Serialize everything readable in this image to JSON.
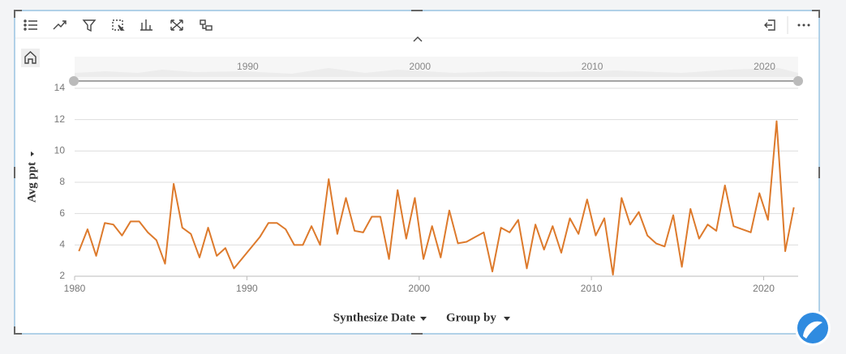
{
  "chart_data": {
    "type": "line",
    "x_label": "Synthesize Date",
    "y_label": "Avg ppt",
    "xlim": [
      1980,
      2022
    ],
    "xticks": [
      1980,
      1990,
      2000,
      2010,
      2020
    ],
    "ylim": [
      2,
      14
    ],
    "yticks": [
      2,
      4,
      6,
      8,
      10,
      12,
      14
    ],
    "grid": true,
    "series": [
      {
        "color": "#dd7a2c",
        "x": [
          1980.25,
          1980.75,
          1981.25,
          1981.75,
          1982.25,
          1982.75,
          1983.25,
          1983.75,
          1984.25,
          1984.75,
          1985.25,
          1985.75,
          1986.25,
          1986.75,
          1987.25,
          1987.75,
          1988.25,
          1988.75,
          1989.25,
          1990.75,
          1991.25,
          1991.75,
          1992.25,
          1992.75,
          1993.25,
          1993.75,
          1994.25,
          1994.75,
          1995.25,
          1995.75,
          1996.25,
          1996.75,
          1997.25,
          1997.75,
          1998.25,
          1998.75,
          1999.25,
          1999.75,
          2000.25,
          2000.75,
          2001.25,
          2001.75,
          2002.25,
          2002.75,
          2003.25,
          2003.75,
          2004.25,
          2004.75,
          2005.25,
          2005.75,
          2006.25,
          2006.75,
          2007.25,
          2007.75,
          2008.25,
          2008.75,
          2009.25,
          2009.75,
          2010.25,
          2010.75,
          2011.25,
          2011.75,
          2012.25,
          2012.75,
          2013.25,
          2013.75,
          2014.25,
          2014.75,
          2015.25,
          2015.75,
          2016.25,
          2016.75,
          2017.25,
          2017.75,
          2018.25,
          2019.25,
          2019.75,
          2020.25,
          2020.75,
          2021.25,
          2021.75
        ],
        "values": [
          3.6,
          5.0,
          3.3,
          5.4,
          5.3,
          4.6,
          5.5,
          5.5,
          4.8,
          4.3,
          2.8,
          7.9,
          5.1,
          4.7,
          3.2,
          5.1,
          3.3,
          3.8,
          2.5,
          4.5,
          5.4,
          5.4,
          5.0,
          4.0,
          4.0,
          5.2,
          4.0,
          8.2,
          4.7,
          7.0,
          4.9,
          4.8,
          5.8,
          5.8,
          3.1,
          7.5,
          4.4,
          7.0,
          3.1,
          5.2,
          3.2,
          6.2,
          4.1,
          4.2,
          4.5,
          4.8,
          2.3,
          5.1,
          4.8,
          5.6,
          2.5,
          5.3,
          3.7,
          5.2,
          3.5,
          5.7,
          4.7,
          6.9,
          4.6,
          5.7,
          2.1,
          7.0,
          5.3,
          6.1,
          4.6,
          4.1,
          3.9,
          5.9,
          2.6,
          6.3,
          4.4,
          5.3,
          4.9,
          7.8,
          5.2,
          4.8,
          7.3,
          5.6,
          11.9,
          3.6,
          6.4
        ]
      }
    ]
  },
  "controls": {
    "group_by": "Group by"
  }
}
